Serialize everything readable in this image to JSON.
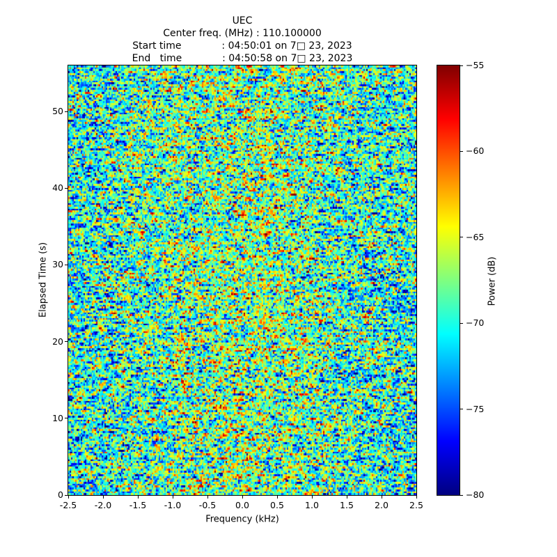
{
  "chart_data": {
    "type": "heatmap",
    "title": "UEC",
    "subtitle_lines": [
      "Center freq. (MHz) : 110.100000",
      "Start time             : 04:50:01 on 7□ 23, 2023",
      "End   time             : 04:50:58 on 7□ 23, 2023"
    ],
    "x_axis": {
      "label": "Frequency (kHz)",
      "lim": [
        -2.5,
        2.5
      ],
      "tick_values": [
        -2.5,
        -2.0,
        -1.5,
        -1.0,
        -0.5,
        0.0,
        0.5,
        1.0,
        1.5,
        2.0,
        2.5
      ],
      "tick_labels": [
        "-2.5",
        "-2.0",
        "-1.5",
        "-1.0",
        "-0.5",
        "0.0",
        "0.5",
        "1.0",
        "1.5",
        "2.0",
        "2.5"
      ]
    },
    "y_axis": {
      "label": "Elapsed Time (s)",
      "lim": [
        0,
        56
      ],
      "tick_values": [
        0,
        10,
        20,
        30,
        40,
        50
      ],
      "tick_labels": [
        "0",
        "10",
        "20",
        "30",
        "40",
        "50"
      ]
    },
    "colorbar": {
      "label": "Power (dB)",
      "lim": [
        -80,
        -55
      ],
      "tick_values": [
        -55,
        -60,
        -65,
        -70,
        -75,
        -80
      ],
      "tick_labels": [
        "−55",
        "−60",
        "−65",
        "−70",
        "−75",
        "−80"
      ],
      "colormap": "jet",
      "gradient_stops_bottom_to_top": [
        {
          "color": "#000080",
          "pos": 0
        },
        {
          "color": "#0000ff",
          "pos": 12.5
        },
        {
          "color": "#00ffff",
          "pos": 37.5
        },
        {
          "color": "#ffff00",
          "pos": 62.5
        },
        {
          "color": "#ff0000",
          "pos": 87.5
        },
        {
          "color": "#800000",
          "pos": 100
        }
      ]
    },
    "heatmap_noise": {
      "description": "broadband random noise, no visible signal; slightly warmer (higher dB) near center frequency",
      "cols": 250,
      "rows": 228,
      "mean_db_edge": -70.2,
      "mean_db_center": -67.4,
      "std_db": 4.6,
      "horizontal_correlation": 0.45,
      "value_clip": [
        -80,
        -55
      ],
      "seed": 1234
    }
  }
}
